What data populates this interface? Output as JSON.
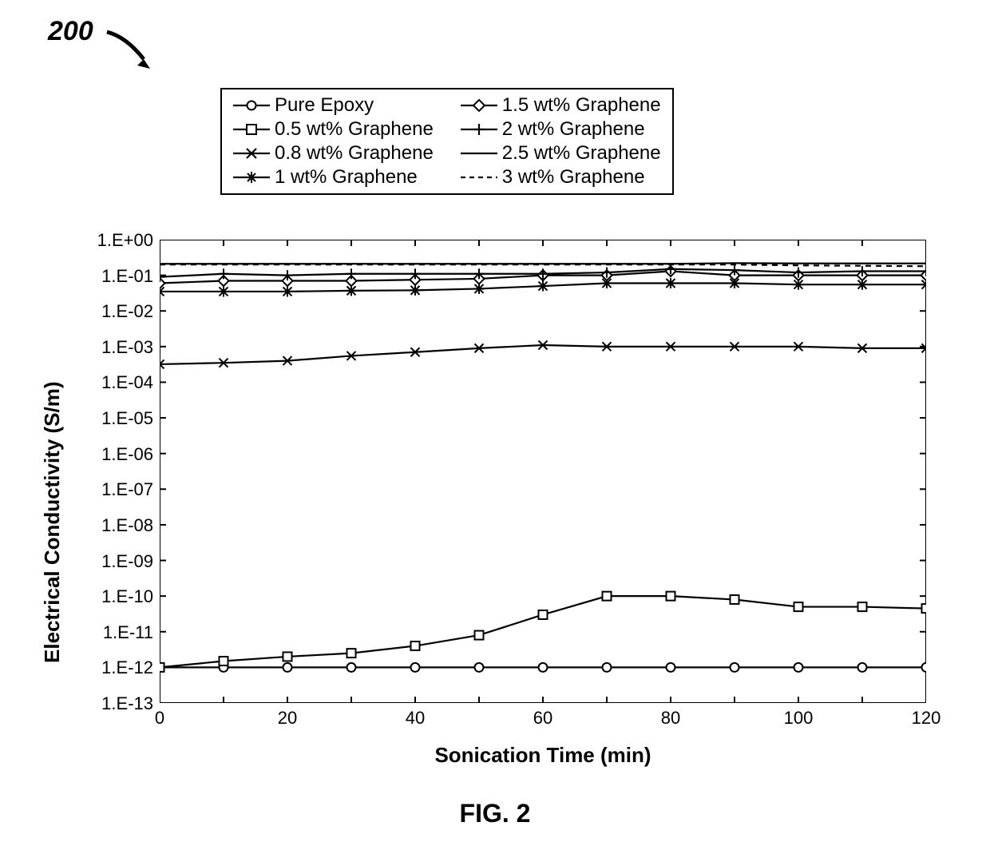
{
  "figure_number_label": "200",
  "figure_number_fontsize": 34,
  "figure_caption": "FIG. 2",
  "figure_caption_fontsize": 32,
  "legend": {
    "fontsize": 24,
    "items": [
      {
        "label": "Pure Epoxy",
        "marker": "circle",
        "line": "solid"
      },
      {
        "label": "1.5 wt% Graphene",
        "marker": "diamond",
        "line": "solid"
      },
      {
        "label": "0.5 wt% Graphene",
        "marker": "square",
        "line": "solid"
      },
      {
        "label": "2 wt% Graphene",
        "marker": "plus",
        "line": "solid"
      },
      {
        "label": "0.8 wt% Graphene",
        "marker": "x",
        "line": "solid"
      },
      {
        "label": "2.5 wt% Graphene",
        "marker": "none",
        "line": "solid"
      },
      {
        "label": "1 wt% Graphene",
        "marker": "star",
        "line": "solid"
      },
      {
        "label": "3 wt% Graphene",
        "marker": "none",
        "line": "dashed"
      }
    ]
  },
  "chart": {
    "type": "line",
    "background_color": "#ffffff",
    "axis_color": "#000000",
    "line_color": "#000000",
    "line_width": 2.2,
    "marker_size": 11,
    "marker_stroke": 2,
    "x": {
      "label": "Sonication Time (min)",
      "label_fontsize": 26,
      "min": 0,
      "max": 120,
      "step": 20,
      "ticks": [
        0,
        10,
        20,
        30,
        40,
        50,
        60,
        70,
        80,
        90,
        100,
        110,
        120
      ],
      "tick_labels": [
        "0",
        "20",
        "40",
        "60",
        "80",
        "100",
        "120"
      ]
    },
    "y": {
      "label": "Electrical Conductivity (S/m)",
      "label_fontsize": 26,
      "scale": "log",
      "min_exp": -13,
      "max_exp": 0,
      "tick_exps": [
        -13,
        -12,
        -11,
        -10,
        -9,
        -8,
        -7,
        -6,
        -5,
        -4,
        -3,
        -2,
        -1,
        0
      ],
      "tick_labels": [
        "1.E-13",
        "1.E-12",
        "1.E-11",
        "1.E-10",
        "1.E-09",
        "1.E-08",
        "1.E-07",
        "1.E-06",
        "1.E-05",
        "1.E-04",
        "1.E-03",
        "1.E-02",
        "1.E-01",
        "1.E+00"
      ]
    },
    "series": [
      {
        "name": "Pure Epoxy",
        "marker": "circle",
        "line": "solid",
        "x": [
          0,
          10,
          20,
          30,
          40,
          50,
          60,
          70,
          80,
          90,
          100,
          110,
          120
        ],
        "y": [
          1e-12,
          1e-12,
          1e-12,
          1e-12,
          1e-12,
          1e-12,
          1e-12,
          1e-12,
          1e-12,
          1e-12,
          1e-12,
          1e-12,
          1e-12
        ]
      },
      {
        "name": "0.5 wt% Graphene",
        "marker": "square",
        "line": "solid",
        "x": [
          0,
          10,
          20,
          30,
          40,
          50,
          60,
          70,
          80,
          90,
          100,
          110,
          120
        ],
        "y": [
          1e-12,
          1.5e-12,
          2e-12,
          2.5e-12,
          4e-12,
          8e-12,
          3e-11,
          1e-10,
          1e-10,
          8e-11,
          5e-11,
          5e-11,
          4.5e-11
        ]
      },
      {
        "name": "0.8 wt% Graphene",
        "marker": "x",
        "line": "solid",
        "x": [
          0,
          10,
          20,
          30,
          40,
          50,
          60,
          70,
          80,
          90,
          100,
          110,
          120
        ],
        "y": [
          0.00032,
          0.00035,
          0.0004,
          0.00055,
          0.0007,
          0.0009,
          0.0011,
          0.001,
          0.001,
          0.001,
          0.001,
          0.0009,
          0.0009
        ]
      },
      {
        "name": "1 wt% Graphene",
        "marker": "star",
        "line": "solid",
        "x": [
          0,
          10,
          20,
          30,
          40,
          50,
          60,
          70,
          80,
          90,
          100,
          110,
          120
        ],
        "y": [
          0.035,
          0.035,
          0.035,
          0.037,
          0.038,
          0.042,
          0.05,
          0.06,
          0.06,
          0.06,
          0.055,
          0.055,
          0.055
        ]
      },
      {
        "name": "1.5 wt% Graphene",
        "marker": "diamond",
        "line": "solid",
        "x": [
          0,
          10,
          20,
          30,
          40,
          50,
          60,
          70,
          80,
          90,
          100,
          110,
          120
        ],
        "y": [
          0.06,
          0.07,
          0.07,
          0.07,
          0.075,
          0.08,
          0.1,
          0.1,
          0.13,
          0.1,
          0.1,
          0.1,
          0.1
        ]
      },
      {
        "name": "2 wt% Graphene",
        "marker": "plus",
        "line": "solid",
        "x": [
          0,
          10,
          20,
          30,
          40,
          50,
          60,
          70,
          80,
          90,
          100,
          110,
          120
        ],
        "y": [
          0.09,
          0.11,
          0.1,
          0.11,
          0.11,
          0.11,
          0.11,
          0.12,
          0.15,
          0.14,
          0.12,
          0.13,
          0.13
        ]
      },
      {
        "name": "2.5 wt% Graphene",
        "marker": "none",
        "line": "solid",
        "x": [
          0,
          10,
          20,
          30,
          40,
          50,
          60,
          70,
          80,
          90,
          100,
          110,
          120
        ],
        "y": [
          0.21,
          0.21,
          0.21,
          0.21,
          0.21,
          0.21,
          0.21,
          0.21,
          0.21,
          0.22,
          0.215,
          0.215,
          0.215
        ]
      },
      {
        "name": "3 wt% Graphene",
        "marker": "none",
        "line": "dashed",
        "x": [
          0,
          10,
          20,
          30,
          40,
          50,
          60,
          70,
          80,
          90,
          100,
          110,
          120
        ],
        "y": [
          0.2,
          0.2,
          0.2,
          0.2,
          0.2,
          0.2,
          0.2,
          0.2,
          0.2,
          0.2,
          0.19,
          0.185,
          0.18
        ]
      }
    ]
  }
}
